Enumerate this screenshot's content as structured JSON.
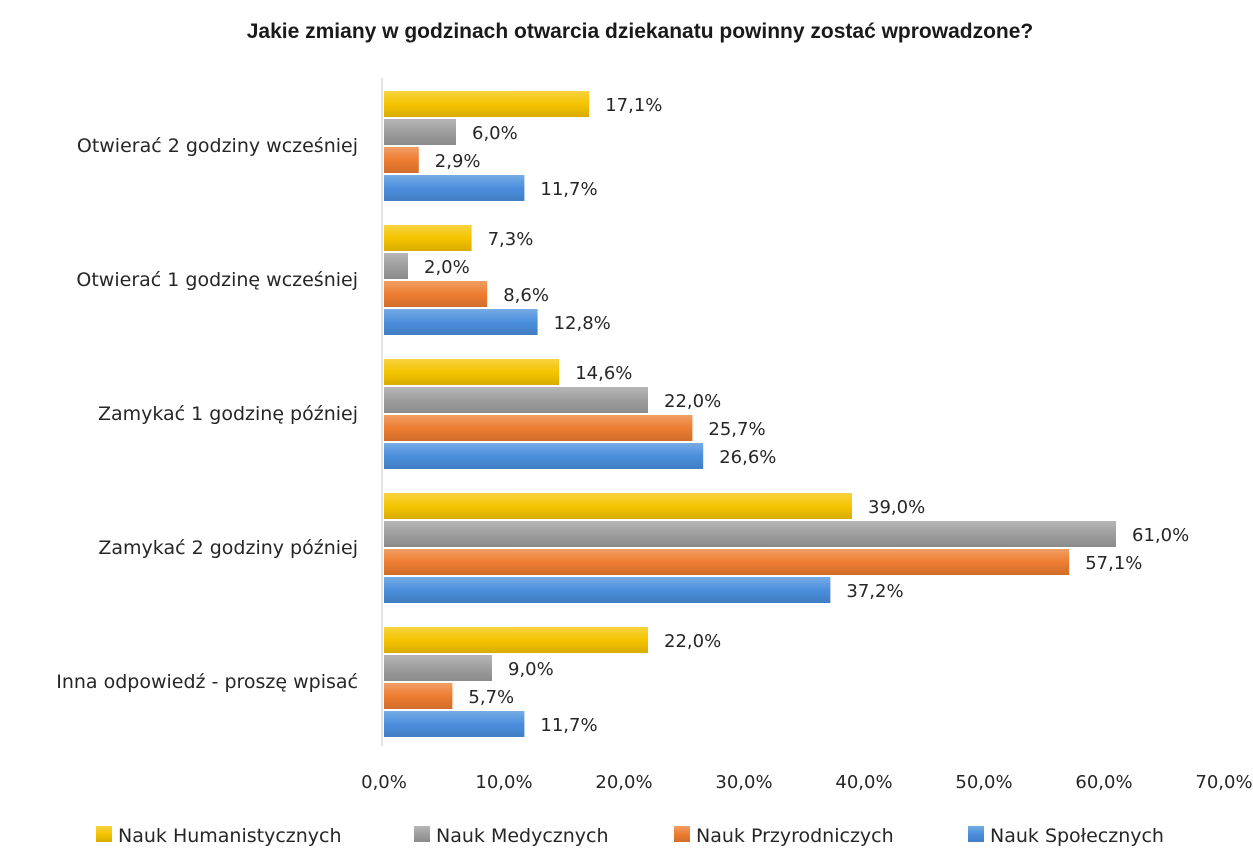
{
  "chart_data": {
    "type": "bar",
    "orientation": "horizontal",
    "title": "Jakie zmiany w godzinach otwarcia dziekanatu powinny zostać wprowadzone?",
    "xlabel": "",
    "ylabel": "",
    "xlim": [
      0,
      70
    ],
    "x_ticks": [
      "0,0%",
      "10,0%",
      "20,0%",
      "30,0%",
      "40,0%",
      "50,0%",
      "60,0%",
      "70,0%"
    ],
    "grid": false,
    "legend_position": "bottom",
    "categories": [
      "Otwierać 2 godziny wcześniej",
      "Otwierać 1 godzinę wcześniej",
      "Zamykać 1 godzinę później",
      "Zamykać 2 godziny później",
      "Inna odpowiedź - proszę wpisać"
    ],
    "series": [
      {
        "name": "Nauk Humanistycznych",
        "color": "#f5c400",
        "values": [
          17.1,
          7.3,
          14.6,
          39.0,
          22.0
        ],
        "labels": [
          "17,1%",
          "7,3%",
          "14,6%",
          "39,0%",
          "22,0%"
        ]
      },
      {
        "name": "Nauk Medycznych",
        "color": "#9e9e9e",
        "values": [
          6.0,
          2.0,
          22.0,
          61.0,
          9.0
        ],
        "labels": [
          "6,0%",
          "2,0%",
          "22,0%",
          "61,0%",
          "9,0%"
        ]
      },
      {
        "name": "Nauk Przyrodniczych",
        "color": "#ed7d31",
        "values": [
          2.9,
          8.6,
          25.7,
          57.1,
          5.7
        ],
        "labels": [
          "2,9%",
          "8,6%",
          "25,7%",
          "57,1%",
          "5,7%"
        ]
      },
      {
        "name": "Nauk Społecznych",
        "color": "#4a8fdc",
        "values": [
          11.7,
          12.8,
          26.6,
          37.2,
          11.7
        ],
        "labels": [
          "11,7%",
          "12,8%",
          "26,6%",
          "37,2%",
          "11,7%"
        ]
      }
    ]
  }
}
